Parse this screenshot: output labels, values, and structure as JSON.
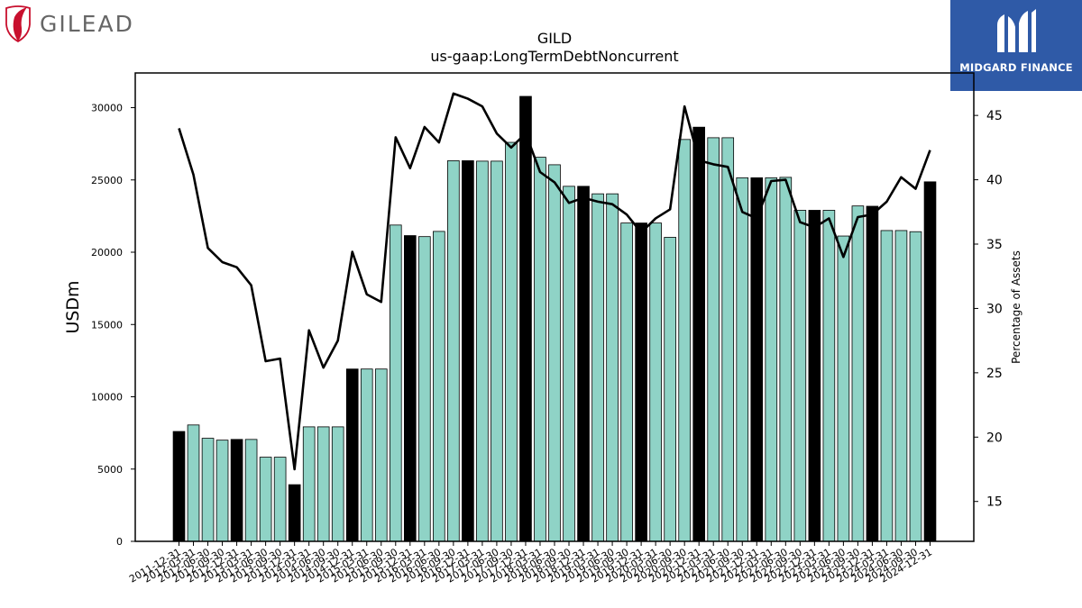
{
  "logos": {
    "left_company": "GILEAD",
    "right_company": "MIDGARD FINANCE"
  },
  "chart_data": {
    "type": "bar",
    "title": "GILD",
    "subtitle": "us-gaap:LongTermDebtNoncurrent",
    "ylabel": "USDm",
    "y2label": "Percentage of Assets",
    "ylim": [
      0,
      32400
    ],
    "y2lim": [
      11.9,
      48.3
    ],
    "yticks": [
      0,
      5000,
      10000,
      15000,
      20000,
      25000,
      30000
    ],
    "y2ticks": [
      15,
      20,
      25,
      30,
      35,
      40,
      45
    ],
    "categories": [
      "2011-12-31",
      "2012-03-31",
      "2012-06-30",
      "2012-09-30",
      "2012-12-31",
      "2013-03-31",
      "2013-06-30",
      "2013-09-30",
      "2013-12-31",
      "2014-03-31",
      "2014-06-30",
      "2014-09-30",
      "2014-12-31",
      "2015-03-31",
      "2015-06-30",
      "2015-09-30",
      "2015-12-31",
      "2016-03-31",
      "2016-06-30",
      "2016-09-30",
      "2016-12-31",
      "2017-03-31",
      "2017-06-30",
      "2017-09-30",
      "2017-12-31",
      "2018-03-31",
      "2018-06-30",
      "2018-09-30",
      "2018-12-31",
      "2019-03-31",
      "2019-06-30",
      "2019-09-30",
      "2019-12-31",
      "2020-03-31",
      "2020-06-30",
      "2020-09-30",
      "2020-12-31",
      "2021-03-31",
      "2021-06-30",
      "2021-09-30",
      "2021-12-31",
      "2022-03-31",
      "2022-06-30",
      "2022-09-30",
      "2022-12-31",
      "2023-03-31",
      "2023-06-30",
      "2023-09-30",
      "2023-12-31",
      "2024-03-31",
      "2024-06-30",
      "2024-09-30",
      "2024-12-31"
    ],
    "series": [
      {
        "type": "bar",
        "axis": "left",
        "values": [
          7600,
          8050,
          7130,
          7000,
          7050,
          7050,
          5820,
          5820,
          3920,
          7920,
          7920,
          7920,
          11920,
          11920,
          11920,
          21880,
          21150,
          21080,
          21440,
          26330,
          26330,
          26300,
          26300,
          27600,
          30780,
          26570,
          26050,
          24560,
          24560,
          24040,
          24040,
          22020,
          22020,
          22020,
          21030,
          27800,
          28650,
          27920,
          27920,
          25150,
          25150,
          25150,
          25180,
          22900,
          22900,
          22900,
          21120,
          23200,
          23180,
          21500,
          21500,
          21420,
          24870
        ],
        "annual_color": "#000000",
        "quarter_color": "#8fd3c6"
      },
      {
        "type": "line",
        "axis": "right",
        "values": [
          44.0,
          40.4,
          34.7,
          33.6,
          33.2,
          31.8,
          25.9,
          26.1,
          17.5,
          28.3,
          25.4,
          27.5,
          34.4,
          31.1,
          30.5,
          43.3,
          40.9,
          44.1,
          42.9,
          46.7,
          46.3,
          45.7,
          43.6,
          42.5,
          43.6,
          40.6,
          39.8,
          38.2,
          38.6,
          38.3,
          38.1,
          37.3,
          35.9,
          37.0,
          37.7,
          45.7,
          41.5,
          41.2,
          41.0,
          37.5,
          37.0,
          39.9,
          40.0,
          36.7,
          36.3,
          37.0,
          34.0,
          37.1,
          37.3,
          38.3,
          40.2,
          39.3,
          42.3
        ],
        "color": "#000000"
      }
    ]
  }
}
